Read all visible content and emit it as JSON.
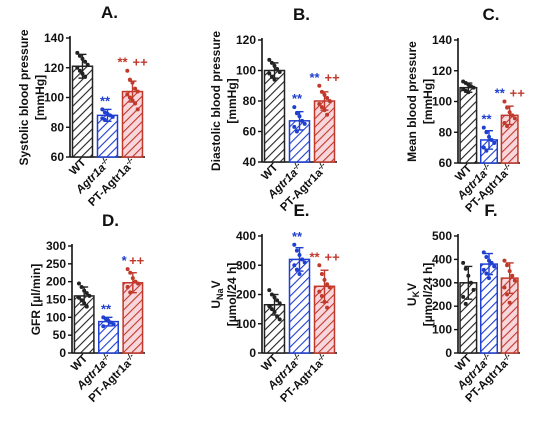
{
  "colors": {
    "wt": "#222222",
    "ko": "#1f3fd0",
    "pt": "#c0392b",
    "pt_fill": "#f7d6dc",
    "axis": "#111111"
  },
  "chart_data": [
    {
      "type": "bar",
      "panel_label": "A.",
      "ylabel_lines": [
        "Systolic blood pressure",
        "[mmHg]"
      ],
      "ylim": [
        60,
        140
      ],
      "yticks": [
        "60",
        "80",
        "100",
        "120",
        "140"
      ],
      "categories": [
        "WT",
        "Agtr1a",
        "PT-Agtr1a"
      ],
      "category_superscripts": [
        "",
        "-/-",
        "-/-"
      ],
      "values": [
        121,
        88,
        104
      ],
      "errors": [
        8,
        4,
        7
      ],
      "points": [
        [
          130,
          128,
          126,
          124,
          122,
          120,
          118,
          116,
          114
        ],
        [
          92,
          90,
          89,
          88,
          87,
          86,
          85
        ],
        [
          118,
          112,
          110,
          106,
          104,
          102,
          100,
          98,
          96,
          92
        ]
      ],
      "annotations": [
        {
          "series": 1,
          "text": "**",
          "color": "#1f3fd0"
        },
        {
          "series": 2,
          "text": "**",
          "color": "#c0392b"
        },
        {
          "series": 2,
          "text": "++",
          "color": "#c0392b"
        }
      ]
    },
    {
      "type": "bar",
      "panel_label": "B.",
      "ylabel_lines": [
        "Diastolic blood pressure",
        "[mmHg]"
      ],
      "ylim": [
        40,
        120
      ],
      "yticks": [
        "40",
        "60",
        "80",
        "100",
        "120"
      ],
      "categories": [
        "WT",
        "Agtr1a",
        "PT-Agtr1a"
      ],
      "category_superscripts": [
        "",
        "-/-",
        "-/-"
      ],
      "values": [
        100,
        67,
        80
      ],
      "errors": [
        5,
        6,
        6
      ],
      "points": [
        [
          107,
          105,
          103,
          101,
          99,
          98,
          96,
          94
        ],
        [
          76,
          72,
          70,
          67,
          65,
          63,
          60
        ],
        [
          90,
          86,
          84,
          82,
          80,
          78,
          76,
          74,
          71
        ]
      ],
      "annotations": [
        {
          "series": 1,
          "text": "**",
          "color": "#1f3fd0"
        },
        {
          "series": 2,
          "text": "**",
          "color": "#1f3fd0"
        },
        {
          "series": 2,
          "text": "++",
          "color": "#c0392b"
        }
      ]
    },
    {
      "type": "bar",
      "panel_label": "C.",
      "ylabel_lines": [
        "Mean blood pressure",
        "[mmHg]"
      ],
      "ylim": [
        60,
        140
      ],
      "yticks": [
        "60",
        "80",
        "100",
        "120",
        "140"
      ],
      "categories": [
        "WT",
        "Agtr1a",
        "PT-Agtr1a"
      ],
      "category_superscripts": [
        "",
        "-/-",
        "-/-"
      ],
      "values": [
        109,
        75,
        91
      ],
      "errors": [
        3,
        6,
        6
      ],
      "points": [
        [
          113,
          112,
          111,
          110,
          109,
          108,
          107,
          106
        ],
        [
          83,
          80,
          77,
          75,
          73,
          70,
          68
        ],
        [
          100,
          96,
          93,
          91,
          89,
          86,
          84
        ]
      ],
      "annotations": [
        {
          "series": 1,
          "text": "**",
          "color": "#1f3fd0"
        },
        {
          "series": 2,
          "text": "**",
          "color": "#1f3fd0"
        },
        {
          "series": 2,
          "text": "++",
          "color": "#c0392b"
        }
      ]
    },
    {
      "type": "bar",
      "panel_label": "D.",
      "ylabel_lines": [
        "GFR [µl/min]"
      ],
      "ylim": [
        0,
        300
      ],
      "yticks": [
        "0",
        "50",
        "100",
        "150",
        "200",
        "250",
        "300"
      ],
      "categories": [
        "WT",
        "Agtr1a",
        "PT-Agtr1a"
      ],
      "category_superscripts": [
        "",
        "-/-",
        "-/-"
      ],
      "values": [
        160,
        88,
        197
      ],
      "errors": [
        25,
        12,
        28
      ],
      "points": [
        [
          195,
          185,
          175,
          168,
          160,
          155,
          148,
          140,
          130
        ],
        [
          100,
          95,
          90,
          85,
          80,
          75
        ],
        [
          235,
          225,
          210,
          200,
          195,
          185,
          170
        ]
      ],
      "annotations": [
        {
          "series": 1,
          "text": "**",
          "color": "#1f3fd0"
        },
        {
          "series": 2,
          "text": "*",
          "color": "#1f3fd0"
        },
        {
          "series": 2,
          "text": "++",
          "color": "#c0392b"
        }
      ]
    },
    {
      "type": "bar",
      "panel_label": "E.",
      "ylabel_lines": [
        "U",
        "[µmol/24 h]"
      ],
      "ylabel_sub": "Na",
      "ylabel_tail": "V",
      "ylim": [
        0,
        400
      ],
      "yticks": [
        "0",
        "100",
        "200",
        "300",
        "400"
      ],
      "categories": [
        "WT",
        "Agtr1a",
        "PT-Agtr1a"
      ],
      "category_superscripts": [
        "",
        "-/-",
        "-/-"
      ],
      "values": [
        165,
        320,
        228
      ],
      "errors": [
        35,
        40,
        55
      ],
      "points": [
        [
          215,
          200,
          190,
          180,
          170,
          160,
          150,
          140,
          125,
          115
        ],
        [
          370,
          350,
          335,
          320,
          310,
          300,
          285,
          270
        ],
        [
          300,
          270,
          250,
          235,
          225,
          210,
          195,
          175,
          155
        ]
      ],
      "annotations": [
        {
          "series": 1,
          "text": "**",
          "color": "#1f3fd0"
        },
        {
          "series": 2,
          "text": "**",
          "color": "#c0392b"
        },
        {
          "series": 2,
          "text": "++",
          "color": "#c0392b"
        }
      ]
    },
    {
      "type": "bar",
      "panel_label": "F.",
      "ylabel_lines": [
        "U",
        "[µmol/24 h]"
      ],
      "ylabel_sub": "K",
      "ylabel_tail": "V",
      "ylim": [
        0,
        500
      ],
      "yticks": [
        "0",
        "100",
        "200",
        "300",
        "400",
        "500"
      ],
      "categories": [
        "WT",
        "Agtr1a",
        "PT-Agtr1a"
      ],
      "category_superscripts": [
        "",
        "-/-",
        "-/-"
      ],
      "values": [
        300,
        380,
        320
      ],
      "errors": [
        70,
        45,
        65
      ],
      "points": [
        [
          385,
          360,
          330,
          300,
          270,
          240,
          210
        ],
        [
          430,
          410,
          395,
          385,
          370,
          355,
          340,
          320
        ],
        [
          395,
          375,
          350,
          330,
          310,
          280,
          250,
          215
        ]
      ],
      "annotations": []
    }
  ]
}
